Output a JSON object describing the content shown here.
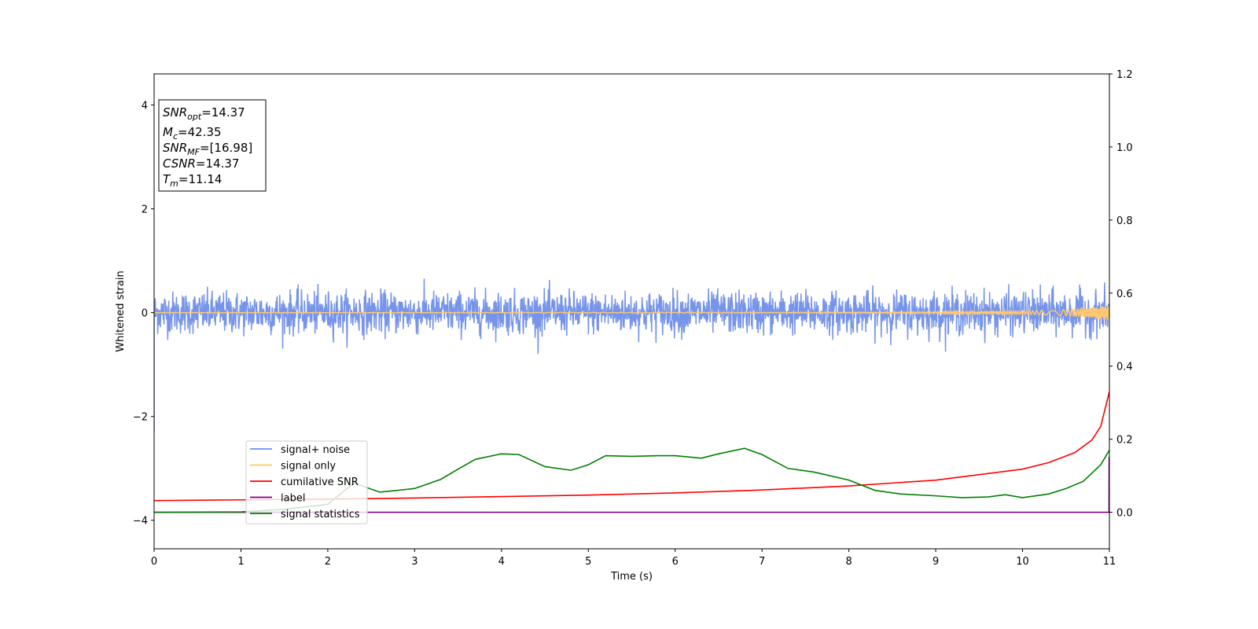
{
  "chart_data": {
    "type": "line",
    "xlabel": "Time (s)",
    "ylabel": "Whitened strain",
    "xlim": [
      0,
      11
    ],
    "ylim": [
      -4.55,
      4.6
    ],
    "y2lim": [
      -0.1,
      1.2
    ],
    "grid": false,
    "legend_position": "lower-left",
    "x_ticks": [
      "0",
      "1",
      "2",
      "3",
      "4",
      "5",
      "6",
      "7",
      "8",
      "9",
      "10",
      "11"
    ],
    "y_ticks": [
      {
        "value": 4,
        "label": "4"
      },
      {
        "value": 2,
        "label": "2"
      },
      {
        "value": 0,
        "label": "0"
      },
      {
        "value": -2,
        "label": "−2"
      },
      {
        "value": -4,
        "label": "−4"
      }
    ],
    "y2_ticks": [
      "0.0",
      "0.2",
      "0.4",
      "0.6",
      "0.8",
      "1.0",
      "1.2"
    ],
    "info_box": [
      {
        "main": "SNR",
        "sub": "opt",
        "value": "=14.37"
      },
      {
        "main": "M",
        "sub": "c",
        "value": "=42.35"
      },
      {
        "main": "SNR",
        "sub": "MF",
        "value": "=[16.98]"
      },
      {
        "main": "CSNR",
        "sub": "",
        "value": "=14.37"
      },
      {
        "main": "T",
        "sub": "m",
        "value": "=11.14"
      }
    ],
    "series": [
      {
        "name": "signal+ noise",
        "color": "#6f8ee8",
        "axis": "left",
        "noise_amplitude": 0.55
      },
      {
        "name": "signal only",
        "color": "#ffc870",
        "axis": "left",
        "x": [
          0,
          9,
          10,
          10.5,
          10.8,
          11
        ],
        "envelope": [
          0.0,
          0.01,
          0.03,
          0.06,
          0.1,
          0.15
        ]
      },
      {
        "name": "cumilative SNR",
        "color": "#ff0000",
        "axis": "right",
        "x": [
          0,
          1,
          2,
          3,
          4,
          5,
          6,
          7,
          8,
          9,
          10,
          10.3,
          10.6,
          10.8,
          10.9,
          11
        ],
        "values": [
          0.032,
          0.034,
          0.036,
          0.039,
          0.043,
          0.047,
          0.053,
          0.061,
          0.072,
          0.088,
          0.118,
          0.136,
          0.163,
          0.198,
          0.235,
          0.33
        ]
      },
      {
        "name": "label",
        "color": "#800080",
        "axis": "right",
        "x": [
          0,
          10.995,
          10.997,
          11
        ],
        "values": [
          0,
          0,
          0.15,
          0.15
        ]
      },
      {
        "name": "signal statistics",
        "color": "#008000",
        "axis": "right",
        "x": [
          0,
          1,
          1.5,
          2,
          2.3,
          2.6,
          3,
          3.3,
          3.5,
          3.7,
          4,
          4.2,
          4.5,
          4.8,
          5,
          5.2,
          5.5,
          5.8,
          6,
          6.3,
          6.5,
          6.8,
          7,
          7.3,
          7.6,
          8,
          8.3,
          8.6,
          9,
          9.3,
          9.6,
          9.8,
          10,
          10.3,
          10.5,
          10.7,
          10.9,
          11
        ],
        "values": [
          0.0,
          0.001,
          0.008,
          0.022,
          0.08,
          0.055,
          0.065,
          0.09,
          0.118,
          0.145,
          0.16,
          0.158,
          0.125,
          0.115,
          0.13,
          0.155,
          0.153,
          0.155,
          0.155,
          0.148,
          0.16,
          0.175,
          0.158,
          0.12,
          0.11,
          0.088,
          0.06,
          0.05,
          0.045,
          0.04,
          0.042,
          0.048,
          0.04,
          0.05,
          0.065,
          0.085,
          0.13,
          0.17
        ]
      }
    ]
  },
  "colors": {
    "axis": "#000000",
    "background": "#ffffff"
  }
}
